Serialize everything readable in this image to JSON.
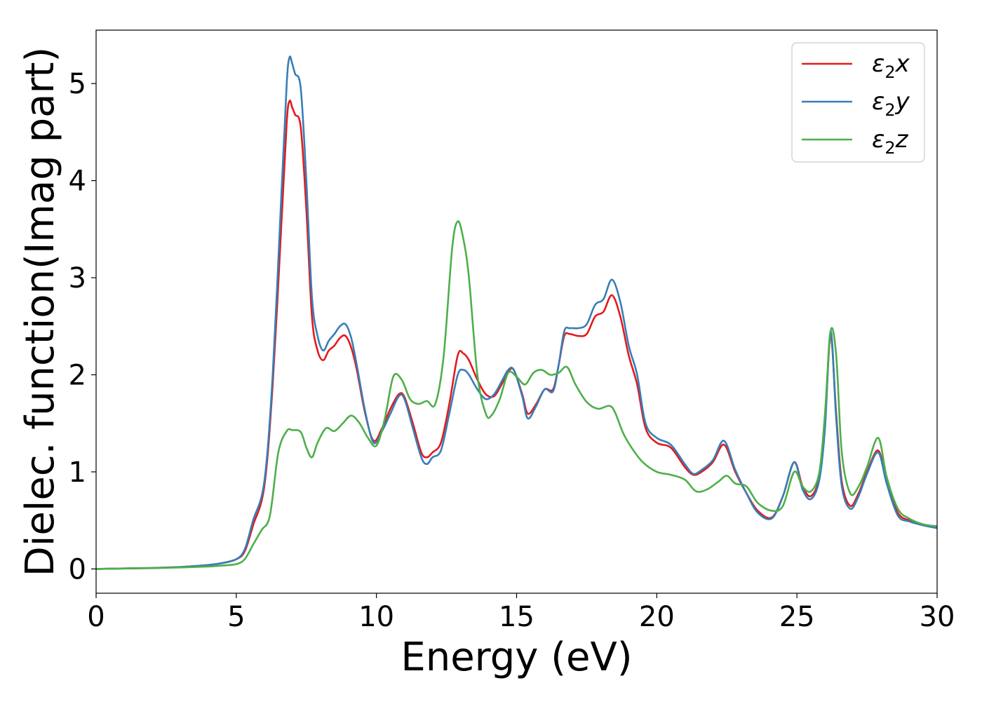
{
  "chart_data": {
    "type": "line",
    "xlabel": "Energy (eV)",
    "ylabel": "Dielec. function(Imag part)",
    "xlim": [
      0,
      30
    ],
    "ylim": [
      -0.25,
      5.55
    ],
    "xticks": [
      0,
      5,
      10,
      15,
      20,
      25,
      30
    ],
    "yticks": [
      0,
      1,
      2,
      3,
      4,
      5
    ],
    "grid": false,
    "legend_position": "top-right",
    "series": [
      {
        "name": "ε2x",
        "legend_base": "ε",
        "legend_sub": "2",
        "legend_tail": "x",
        "color": "#e41a1c",
        "x": [
          0,
          1,
          2,
          3,
          4,
          4.5,
          5,
          5.3,
          5.6,
          6.0,
          6.3,
          6.6,
          6.8,
          6.9,
          7.0,
          7.1,
          7.3,
          7.5,
          7.7,
          7.9,
          8.1,
          8.3,
          8.5,
          8.7,
          8.9,
          9.1,
          9.3,
          9.6,
          9.9,
          10.2,
          10.5,
          10.8,
          11.0,
          11.3,
          11.6,
          11.8,
          12.0,
          12.3,
          12.6,
          12.9,
          13.1,
          13.3,
          13.6,
          13.9,
          14.2,
          14.5,
          14.7,
          14.9,
          15.2,
          15.4,
          15.7,
          16.0,
          16.3,
          16.5,
          16.7,
          16.9,
          17.2,
          17.5,
          17.8,
          18.1,
          18.4,
          18.7,
          19.0,
          19.3,
          19.6,
          20.0,
          20.5,
          21.0,
          21.3,
          21.6,
          22.0,
          22.4,
          22.8,
          23.2,
          23.6,
          24.1,
          24.5,
          24.9,
          25.2,
          25.5,
          25.8,
          26.0,
          26.2,
          26.4,
          26.6,
          26.9,
          27.2,
          27.5,
          27.9,
          28.2,
          28.6,
          29.0,
          29.5,
          30.0
        ],
        "y": [
          0.0,
          0.005,
          0.01,
          0.02,
          0.04,
          0.06,
          0.1,
          0.18,
          0.45,
          0.85,
          1.9,
          3.5,
          4.6,
          4.82,
          4.75,
          4.68,
          4.55,
          3.7,
          2.6,
          2.25,
          2.15,
          2.25,
          2.3,
          2.38,
          2.4,
          2.28,
          2.05,
          1.6,
          1.32,
          1.45,
          1.65,
          1.8,
          1.77,
          1.5,
          1.2,
          1.15,
          1.2,
          1.3,
          1.7,
          2.2,
          2.22,
          2.15,
          1.95,
          1.8,
          1.78,
          1.92,
          2.03,
          2.05,
          1.8,
          1.6,
          1.7,
          1.85,
          1.85,
          2.1,
          2.4,
          2.42,
          2.4,
          2.42,
          2.6,
          2.65,
          2.82,
          2.6,
          2.2,
          1.9,
          1.45,
          1.3,
          1.25,
          1.05,
          0.97,
          1.0,
          1.1,
          1.28,
          1.0,
          0.78,
          0.6,
          0.53,
          0.75,
          1.1,
          0.85,
          0.75,
          0.95,
          1.5,
          2.4,
          1.6,
          0.9,
          0.65,
          0.78,
          1.0,
          1.22,
          0.9,
          0.58,
          0.5,
          0.45,
          0.43
        ]
      },
      {
        "name": "ε2y",
        "legend_base": "ε",
        "legend_sub": "2",
        "legend_tail": "y",
        "color": "#377eb8",
        "x": [
          0,
          1,
          2,
          3,
          4,
          4.5,
          5,
          5.3,
          5.6,
          6.0,
          6.3,
          6.6,
          6.8,
          6.9,
          7.0,
          7.1,
          7.3,
          7.5,
          7.7,
          7.9,
          8.1,
          8.3,
          8.5,
          8.7,
          8.9,
          9.1,
          9.3,
          9.6,
          9.9,
          10.2,
          10.5,
          10.8,
          11.0,
          11.3,
          11.6,
          11.8,
          12.0,
          12.3,
          12.6,
          12.9,
          13.1,
          13.3,
          13.6,
          13.9,
          14.2,
          14.5,
          14.7,
          14.9,
          15.2,
          15.4,
          15.7,
          16.0,
          16.3,
          16.5,
          16.7,
          16.9,
          17.2,
          17.5,
          17.8,
          18.1,
          18.4,
          18.7,
          19.0,
          19.3,
          19.6,
          20.0,
          20.5,
          21.0,
          21.3,
          21.6,
          22.0,
          22.4,
          22.8,
          23.2,
          23.6,
          24.1,
          24.5,
          24.9,
          25.2,
          25.5,
          25.8,
          26.0,
          26.2,
          26.4,
          26.6,
          26.9,
          27.2,
          27.5,
          27.9,
          28.2,
          28.6,
          29.0,
          29.5,
          30.0
        ],
        "y": [
          0.0,
          0.005,
          0.01,
          0.02,
          0.04,
          0.06,
          0.1,
          0.2,
          0.5,
          0.9,
          2.0,
          3.8,
          5.0,
          5.27,
          5.2,
          5.1,
          4.95,
          4.0,
          2.8,
          2.4,
          2.25,
          2.35,
          2.42,
          2.5,
          2.52,
          2.38,
          2.1,
          1.62,
          1.3,
          1.42,
          1.6,
          1.78,
          1.75,
          1.45,
          1.15,
          1.08,
          1.15,
          1.22,
          1.6,
          2.0,
          2.05,
          2.0,
          1.85,
          1.75,
          1.8,
          1.95,
          2.05,
          2.05,
          1.78,
          1.55,
          1.68,
          1.85,
          1.83,
          2.1,
          2.45,
          2.48,
          2.48,
          2.52,
          2.72,
          2.78,
          2.98,
          2.75,
          2.3,
          2.0,
          1.5,
          1.35,
          1.28,
          1.08,
          0.98,
          1.02,
          1.12,
          1.32,
          1.02,
          0.78,
          0.58,
          0.52,
          0.75,
          1.1,
          0.82,
          0.72,
          0.92,
          1.45,
          2.45,
          1.55,
          0.85,
          0.62,
          0.75,
          0.98,
          1.2,
          0.88,
          0.55,
          0.49,
          0.45,
          0.42
        ]
      },
      {
        "name": "ε2z",
        "legend_base": "ε",
        "legend_sub": "2",
        "legend_tail": "z",
        "color": "#4daf4a",
        "x": [
          0,
          1,
          2,
          3,
          4,
          4.5,
          5,
          5.3,
          5.6,
          5.9,
          6.2,
          6.5,
          6.8,
          7.0,
          7.3,
          7.5,
          7.7,
          7.9,
          8.2,
          8.5,
          8.8,
          9.1,
          9.4,
          9.7,
          10.0,
          10.3,
          10.6,
          10.9,
          11.2,
          11.5,
          11.8,
          12.1,
          12.4,
          12.7,
          12.9,
          13.1,
          13.3,
          13.6,
          13.9,
          14.1,
          14.4,
          14.7,
          15.0,
          15.3,
          15.6,
          15.9,
          16.2,
          16.5,
          16.8,
          17.1,
          17.5,
          17.9,
          18.3,
          18.5,
          18.8,
          19.1,
          19.5,
          20.0,
          20.5,
          21.0,
          21.4,
          21.8,
          22.2,
          22.5,
          22.8,
          23.2,
          23.6,
          24.1,
          24.5,
          24.9,
          25.2,
          25.5,
          25.8,
          26.0,
          26.2,
          26.4,
          26.6,
          26.9,
          27.2,
          27.5,
          27.9,
          28.2,
          28.6,
          29.0,
          29.5,
          30.0
        ],
        "y": [
          0.0,
          0.004,
          0.008,
          0.015,
          0.025,
          0.035,
          0.05,
          0.1,
          0.25,
          0.4,
          0.55,
          1.2,
          1.42,
          1.43,
          1.41,
          1.25,
          1.15,
          1.3,
          1.45,
          1.42,
          1.5,
          1.58,
          1.5,
          1.35,
          1.27,
          1.55,
          1.98,
          1.95,
          1.75,
          1.7,
          1.73,
          1.7,
          2.2,
          3.3,
          3.58,
          3.4,
          3.0,
          2.0,
          1.6,
          1.58,
          1.75,
          2.02,
          1.98,
          1.9,
          2.02,
          2.05,
          2.0,
          2.02,
          2.08,
          1.9,
          1.72,
          1.65,
          1.68,
          1.62,
          1.4,
          1.25,
          1.1,
          1.0,
          0.97,
          0.92,
          0.8,
          0.82,
          0.9,
          0.96,
          0.88,
          0.85,
          0.68,
          0.6,
          0.65,
          1.0,
          0.85,
          0.8,
          1.0,
          1.6,
          2.45,
          2.2,
          1.2,
          0.78,
          0.85,
          1.05,
          1.35,
          0.95,
          0.62,
          0.52,
          0.46,
          0.44
        ]
      }
    ]
  }
}
